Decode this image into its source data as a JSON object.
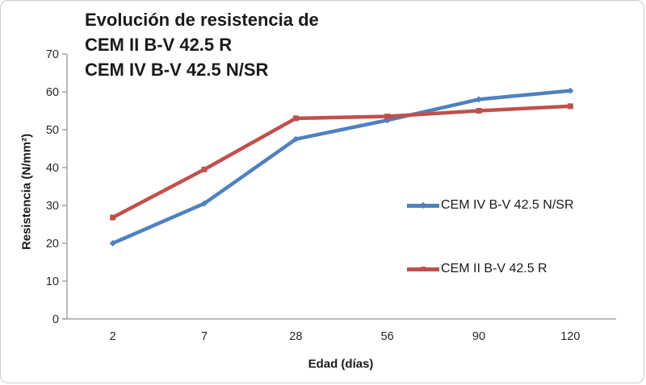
{
  "chart_data": {
    "type": "line",
    "title": "Evolución de resistencia de CEM II B-V 42.5 R CEM IV B-V 42.5 N/SR",
    "title_lines": [
      "Evolución de resistencia de",
      "CEM II B-V 42.5 R",
      "CEM IV B-V 42.5 N/SR"
    ],
    "xlabel": "Edad (días)",
    "ylabel": "Resistencia (N/mm²)",
    "categories": [
      "2",
      "7",
      "28",
      "56",
      "90",
      "120"
    ],
    "yticks": [
      0,
      10,
      20,
      30,
      40,
      50,
      60,
      70
    ],
    "ylim": [
      0,
      70
    ],
    "grid": false,
    "legend_position": "right-middle",
    "series": [
      {
        "name": "CEM IV B-V 42.5 N/SR",
        "color": "#4F81BD",
        "marker": "diamond",
        "values": [
          20,
          30.5,
          47.5,
          52.5,
          58,
          60.3
        ]
      },
      {
        "name": "CEM II B-V 42.5 R",
        "color": "#C0504D",
        "marker": "square",
        "values": [
          26.8,
          39.5,
          53,
          53.5,
          55,
          56.2
        ]
      }
    ],
    "axis_color": "#a6a6a6",
    "tick_text_color": "#262626",
    "border_color": "#cbcbcb"
  }
}
